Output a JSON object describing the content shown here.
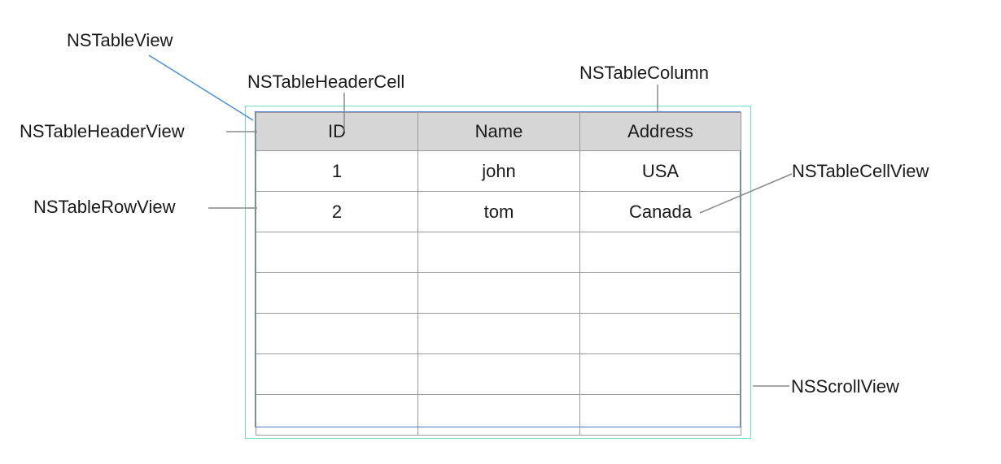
{
  "labels": {
    "table_view": "NSTableView",
    "header_cell": "NSTableHeaderCell",
    "table_column": "NSTableColumn",
    "header_view": "NSTableHeaderView",
    "cell_view": "NSTableCellView",
    "row_view": "NSTableRowView",
    "scroll_view": "NSScrollView"
  },
  "table": {
    "headers": [
      "ID",
      "Name",
      "Address"
    ],
    "rows": [
      [
        "1",
        "john",
        "USA"
      ],
      [
        "2",
        "tom",
        "Canada"
      ],
      [
        "",
        "",
        ""
      ],
      [
        "",
        "",
        ""
      ],
      [
        "",
        "",
        ""
      ],
      [
        "",
        "",
        ""
      ],
      [
        "",
        "",
        ""
      ]
    ]
  },
  "colors": {
    "scroll_view_border": "#6fe0c2",
    "table_view_border": "#5a7fd0",
    "header_background": "#d6d6d6",
    "grid_line": "#9a9a9a",
    "leader_line": "#8a8a8a",
    "table_view_pointer": "#4a90d9"
  }
}
